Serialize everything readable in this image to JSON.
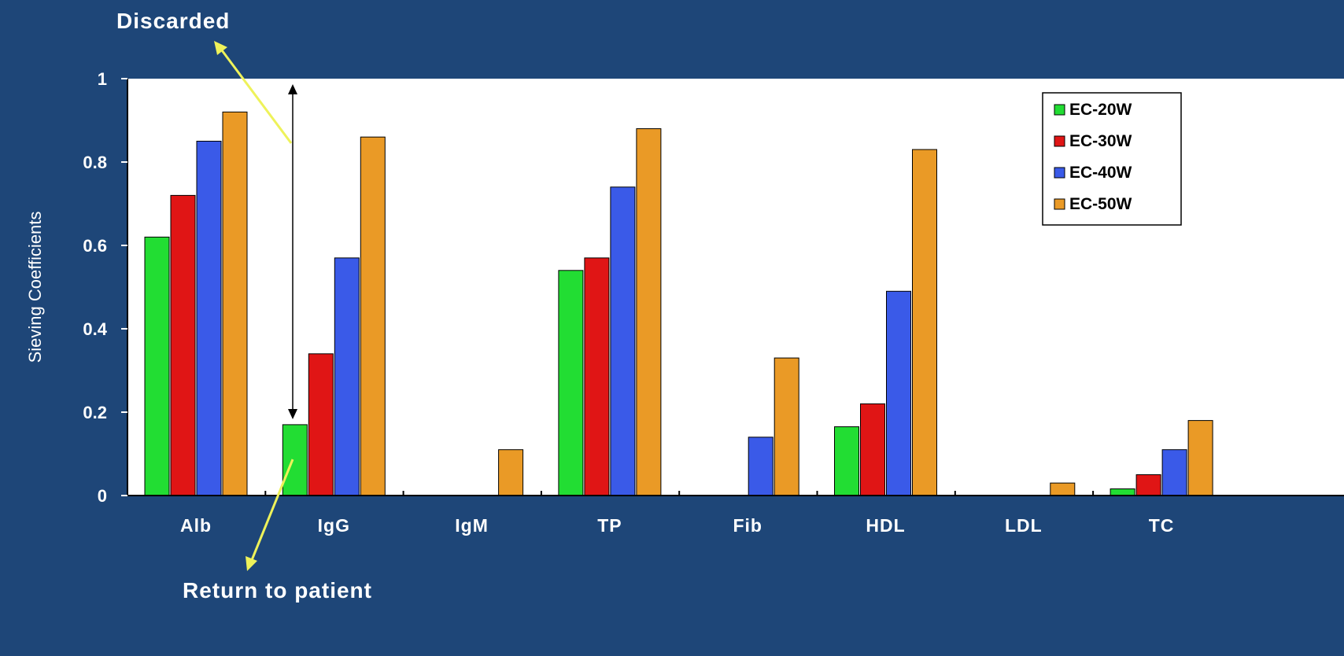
{
  "chart_data": {
    "type": "bar",
    "title": "",
    "xlabel": "",
    "ylabel": "Sieving Coefficients",
    "ylim": [
      0,
      1
    ],
    "yticks": [
      "0",
      "0.2",
      "0.4",
      "0.6",
      "0.8",
      "1"
    ],
    "categories": [
      "Alb",
      "IgG",
      "IgM",
      "TP",
      "Fib",
      "HDL",
      "LDL",
      "TC"
    ],
    "series": [
      {
        "name": "EC-20W",
        "color": "#22dd33",
        "values": [
          0.62,
          0.17,
          0,
          0.54,
          0,
          0.165,
          0,
          0.016
        ]
      },
      {
        "name": "EC-30W",
        "color": "#e01515",
        "values": [
          0.72,
          0.34,
          0,
          0.57,
          0,
          0.22,
          0,
          0.05
        ]
      },
      {
        "name": "EC-40W",
        "color": "#3a5ae8",
        "values": [
          0.85,
          0.57,
          0,
          0.74,
          0.14,
          0.49,
          0,
          0.11
        ]
      },
      {
        "name": "EC-50W",
        "color": "#ea9a26",
        "values": [
          0.92,
          0.86,
          0.11,
          0.88,
          0.33,
          0.83,
          0.03,
          0.18
        ]
      }
    ],
    "legend_position": "top-right",
    "grid": false,
    "annotations": {
      "top": "Discarded",
      "bottom": "Return to patient"
    }
  },
  "colors": {
    "background": "#1e4678",
    "plot_area": "#ffffff",
    "arrow": "#eef25a"
  }
}
